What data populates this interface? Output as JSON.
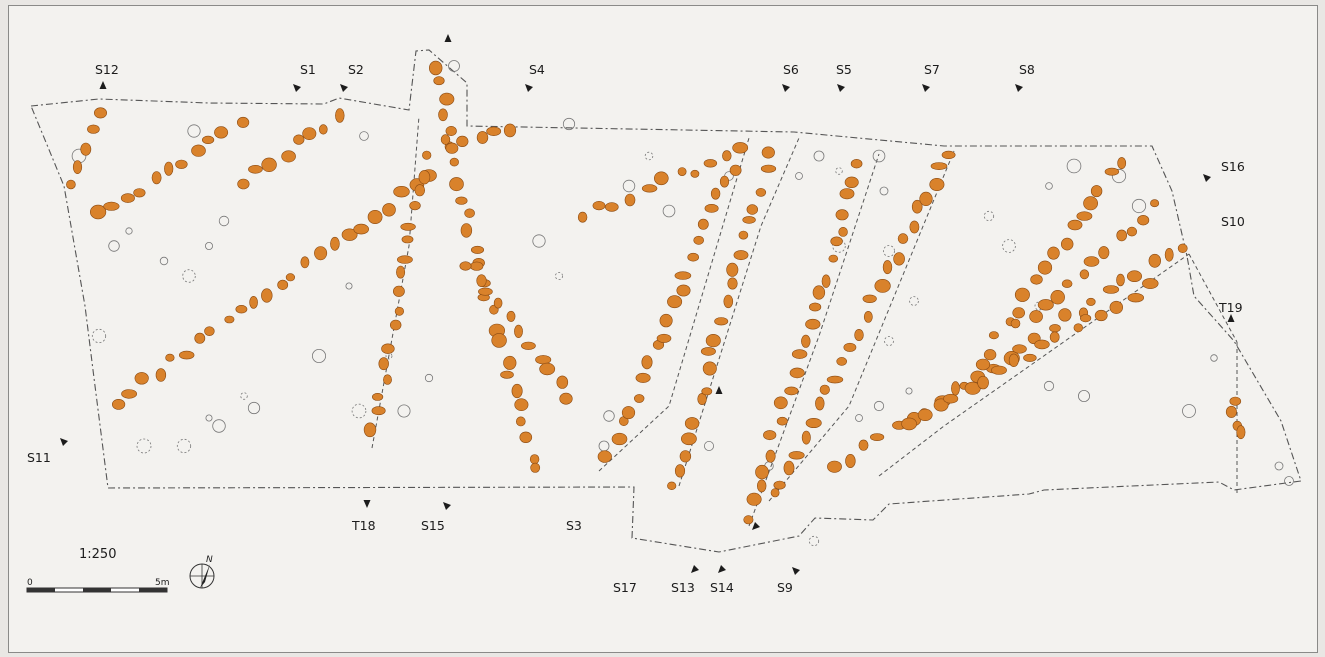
{
  "plan": {
    "scale": "1:250",
    "scale_bar": {
      "start": "0",
      "end": "5m"
    },
    "north_label": "N",
    "colors": {
      "paper": "#f3f2ef",
      "post_hole_fill": "#d9822b",
      "post_hole_stroke": "#8a4a12",
      "outline": "#555555",
      "label": "#1c1c1c"
    },
    "section_labels": [
      "S12",
      "S1",
      "S2",
      "S4",
      "S6",
      "S5",
      "S7",
      "S8",
      "S16",
      "S10",
      "T19",
      "S11",
      "T18",
      "S15",
      "S3",
      "S17",
      "S13",
      "S14",
      "S9"
    ]
  }
}
